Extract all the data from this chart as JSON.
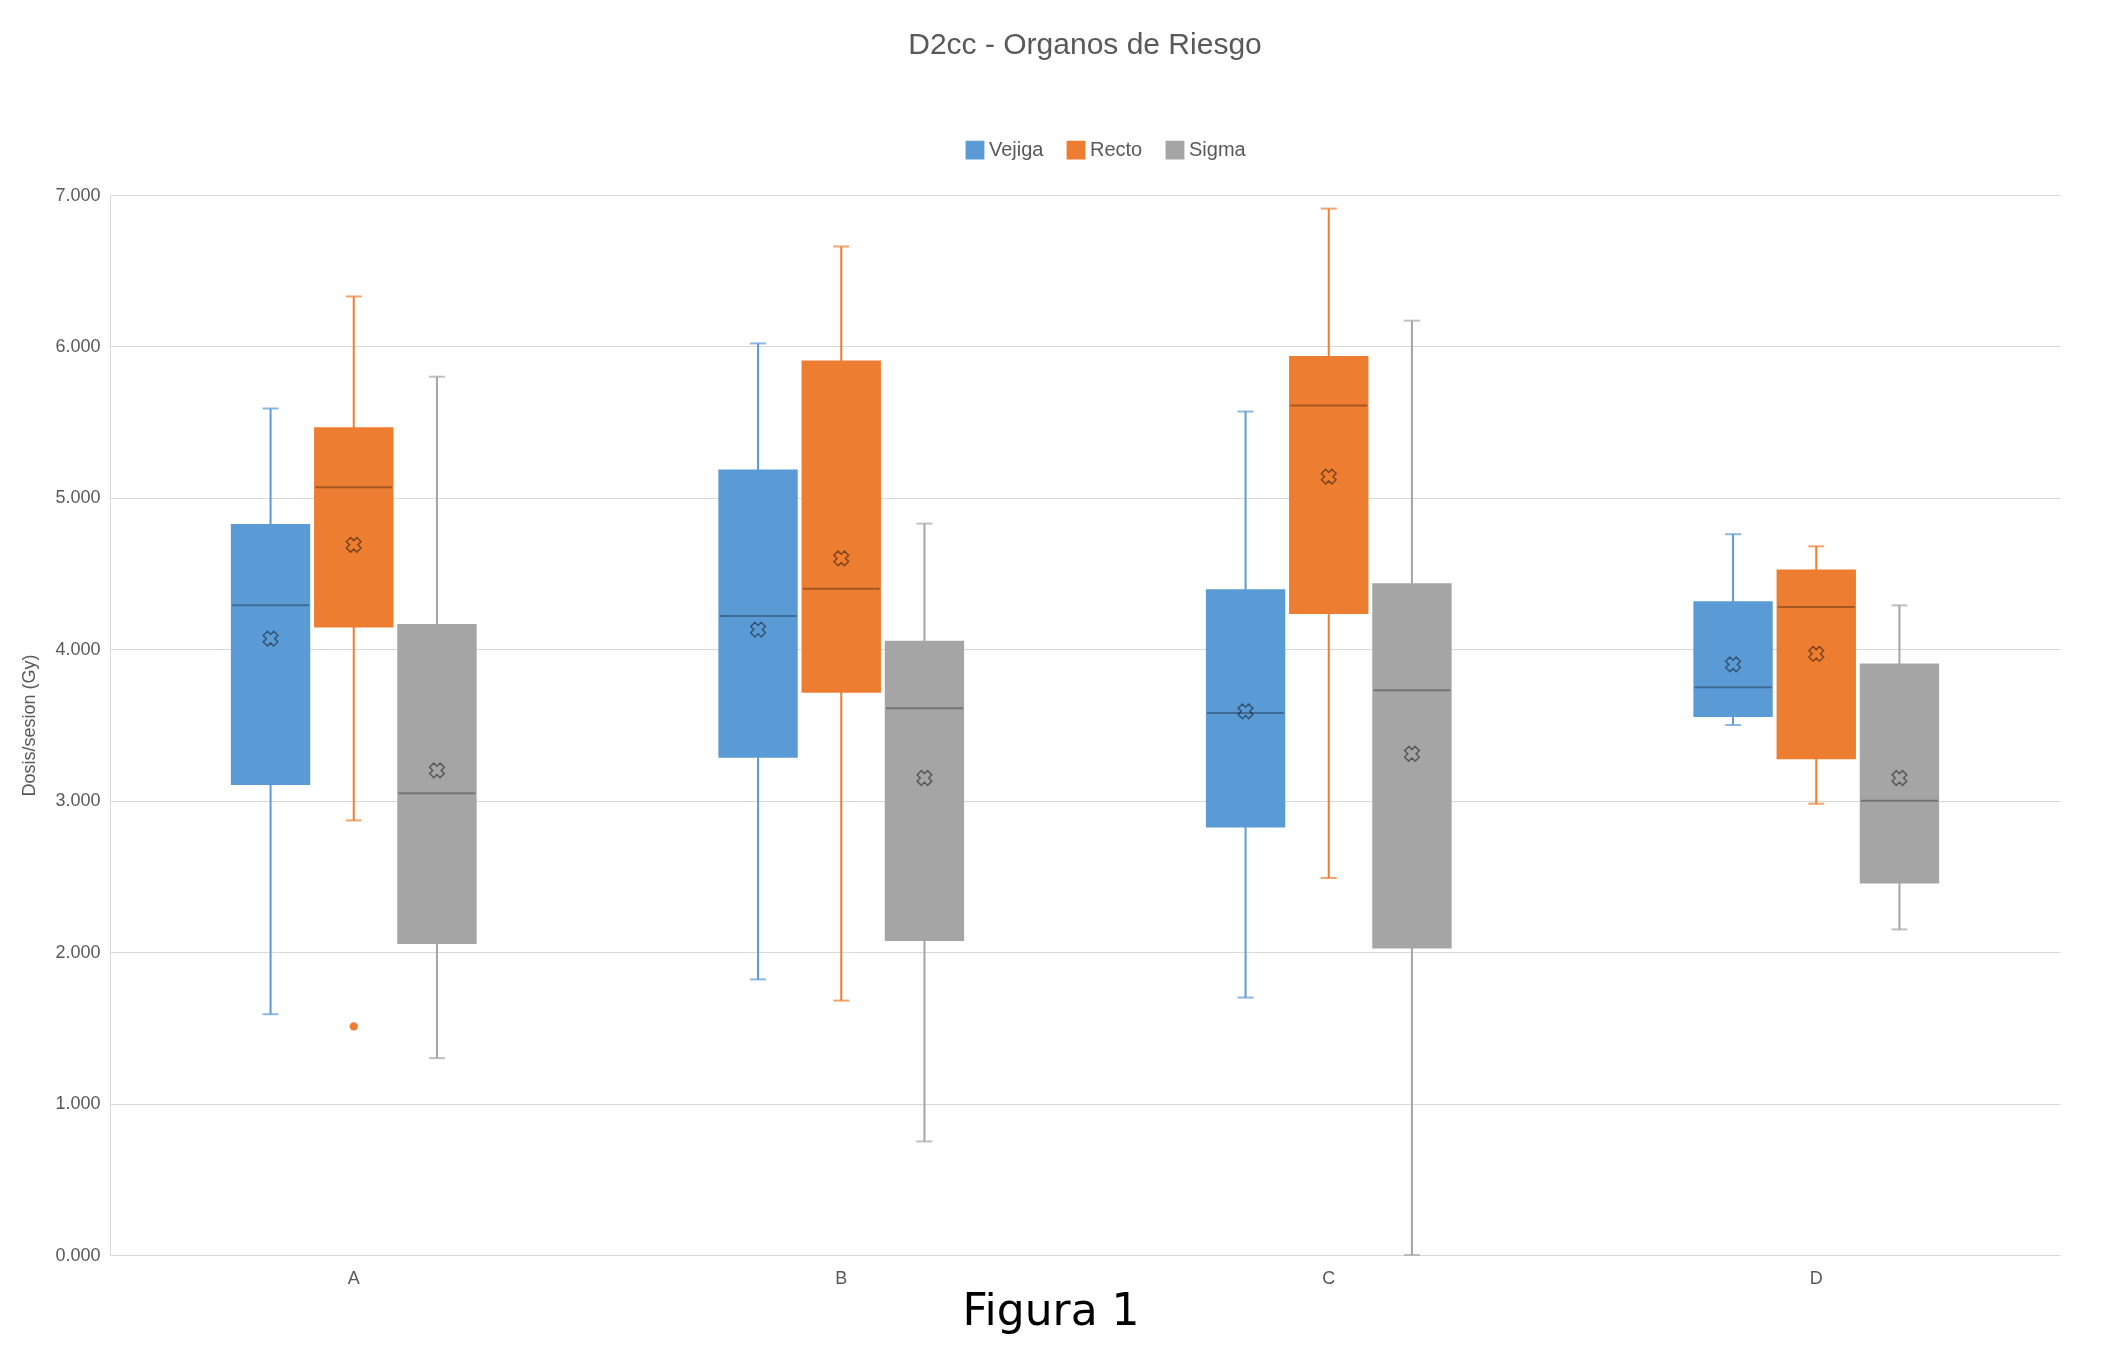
{
  "chart_data": {
    "type": "box",
    "title": "D2cc - Organos de Riesgo",
    "ylabel": "Dosis/sesion (Gy)",
    "categories": [
      "A",
      "B",
      "C",
      "D"
    ],
    "ylim": [
      0,
      7
    ],
    "yticks": [
      {
        "value": 0,
        "label": "0.000"
      },
      {
        "value": 1,
        "label": "1.000"
      },
      {
        "value": 2,
        "label": "2.000"
      },
      {
        "value": 3,
        "label": "3.000"
      },
      {
        "value": 4,
        "label": "4.000"
      },
      {
        "value": 5,
        "label": "5.000"
      },
      {
        "value": 6,
        "label": "6.000"
      },
      {
        "value": 7,
        "label": "7.000"
      }
    ],
    "grid": "y",
    "legend": "top",
    "annotations": [
      "Figura 1"
    ],
    "series": [
      {
        "name": "Vejiga",
        "color": "#5b9bd5",
        "boxes": [
          {
            "low": 1.59,
            "q1": 3.11,
            "median": 4.29,
            "q3": 4.82,
            "high": 5.59,
            "mean": 4.07
          },
          {
            "low": 1.82,
            "q1": 3.29,
            "median": 4.22,
            "q3": 5.18,
            "high": 6.02,
            "mean": 4.13
          },
          {
            "low": 1.7,
            "q1": 2.83,
            "median": 3.58,
            "q3": 4.39,
            "high": 5.57,
            "mean": 3.59
          },
          {
            "low": 3.5,
            "q1": 3.56,
            "median": 3.75,
            "q3": 4.31,
            "high": 4.76,
            "mean": 3.9
          }
        ]
      },
      {
        "name": "Recto",
        "color": "#ed7d31",
        "boxes": [
          {
            "low": 2.87,
            "q1": 4.15,
            "median": 5.07,
            "q3": 5.46,
            "high": 6.33,
            "mean": 4.69,
            "outliers": [
              1.51
            ]
          },
          {
            "low": 1.68,
            "q1": 3.72,
            "median": 4.4,
            "q3": 5.9,
            "high": 6.66,
            "mean": 4.6
          },
          {
            "low": 2.49,
            "q1": 4.24,
            "median": 5.61,
            "q3": 5.93,
            "high": 6.91,
            "mean": 5.14
          },
          {
            "low": 2.98,
            "q1": 3.28,
            "median": 4.28,
            "q3": 4.52,
            "high": 4.68,
            "mean": 3.97
          }
        ]
      },
      {
        "name": "Sigma",
        "color": "#a5a5a5",
        "boxes": [
          {
            "low": 1.3,
            "q1": 2.06,
            "median": 3.05,
            "q3": 4.16,
            "high": 5.8,
            "mean": 3.2
          },
          {
            "low": 0.75,
            "q1": 2.08,
            "median": 3.61,
            "q3": 4.05,
            "high": 4.83,
            "mean": 3.15
          },
          {
            "low": 0,
            "q1": 2.03,
            "median": 3.73,
            "q3": 4.43,
            "high": 6.17,
            "mean": 3.31
          },
          {
            "low": 2.15,
            "q1": 2.46,
            "median": 3.0,
            "q3": 3.9,
            "high": 4.29,
            "mean": 3.15
          }
        ]
      }
    ]
  }
}
